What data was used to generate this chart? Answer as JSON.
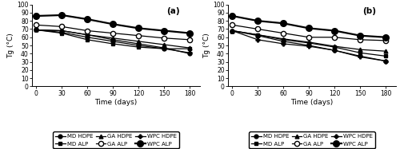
{
  "x": [
    0,
    30,
    60,
    90,
    120,
    150,
    180
  ],
  "panel_a": {
    "MD_HDPE": [
      69,
      68,
      63,
      57,
      52,
      47,
      40
    ],
    "MD_ALP": [
      69,
      65,
      57,
      52,
      48,
      46,
      46
    ],
    "GA_HDPE": [
      69,
      68,
      63,
      59,
      55,
      51,
      47
    ],
    "GA_ALP": [
      75,
      73,
      68,
      65,
      62,
      59,
      57
    ],
    "WPC_HDPE": [
      69,
      66,
      60,
      55,
      50,
      46,
      41
    ],
    "WPC_ALP": [
      86,
      87,
      82,
      76,
      71,
      68,
      65
    ]
  },
  "panel_b": {
    "MD_HDPE": [
      68,
      62,
      55,
      50,
      44,
      37,
      31
    ],
    "MD_ALP": [
      68,
      63,
      57,
      53,
      48,
      41,
      37
    ],
    "GA_HDPE": [
      68,
      63,
      58,
      54,
      49,
      45,
      43
    ],
    "GA_ALP": [
      75,
      70,
      65,
      60,
      60,
      57,
      56
    ],
    "WPC_HDPE": [
      68,
      57,
      52,
      49,
      44,
      36,
      31
    ],
    "WPC_ALP": [
      86,
      80,
      77,
      71,
      68,
      62,
      60
    ]
  },
  "legend_labels": [
    "MD HDPE",
    "MD ALP",
    "GA HDPE",
    "GA ALP",
    "WPC HDPE",
    "WPC ALP"
  ],
  "series_styles": [
    {
      "marker": "o",
      "markersize": 3.5,
      "markerfacecolor": "black",
      "markeredgecolor": "black",
      "linestyle": "-",
      "linewidth": 0.9,
      "color": "black"
    },
    {
      "marker": "s",
      "markersize": 3.5,
      "markerfacecolor": "black",
      "markeredgecolor": "black",
      "linestyle": "-",
      "linewidth": 0.9,
      "color": "black"
    },
    {
      "marker": "^",
      "markersize": 3.5,
      "markerfacecolor": "black",
      "markeredgecolor": "black",
      "linestyle": "-",
      "linewidth": 0.9,
      "color": "black"
    },
    {
      "marker": "o",
      "markersize": 4.5,
      "markerfacecolor": "white",
      "markeredgecolor": "black",
      "linestyle": "-",
      "linewidth": 0.9,
      "color": "black"
    },
    {
      "marker": "P",
      "markersize": 3.5,
      "markerfacecolor": "black",
      "markeredgecolor": "black",
      "linestyle": "-",
      "linewidth": 0.9,
      "color": "black"
    },
    {
      "marker": "o",
      "markersize": 5.5,
      "markerfacecolor": "black",
      "markeredgecolor": "black",
      "linestyle": "-",
      "linewidth": 1.6,
      "color": "black"
    }
  ],
  "xlabel": "Time (days)",
  "ylabel": "Tg (°C)",
  "xlim": [
    -5,
    192
  ],
  "ylim": [
    0,
    100
  ],
  "xticks": [
    0,
    30,
    60,
    90,
    120,
    150,
    180
  ],
  "yticks": [
    0,
    10,
    20,
    30,
    40,
    50,
    60,
    70,
    80,
    90,
    100
  ],
  "panel_labels": [
    "(a)",
    "(b)"
  ],
  "legend_ncol": 3,
  "legend_rows": [
    [
      "MD HDPE",
      "MD ALP",
      "GA HDPE"
    ],
    [
      "GA ALP",
      "WPC HDPE",
      "WPC ALP"
    ]
  ],
  "figsize": [
    5.0,
    1.87
  ],
  "dpi": 100
}
